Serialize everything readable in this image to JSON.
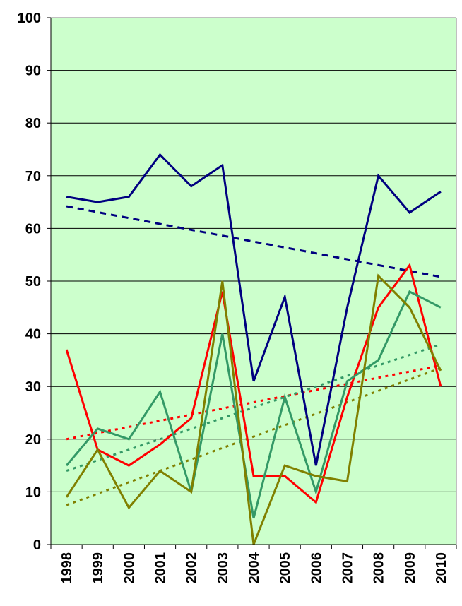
{
  "chart_data": {
    "type": "line",
    "title": "",
    "xlabel": "",
    "ylabel": "",
    "categories": [
      "1998",
      "1999",
      "2000",
      "2001",
      "2002",
      "2003",
      "2004",
      "2005",
      "2006",
      "2007",
      "2008",
      "2009",
      "2010"
    ],
    "ylim": [
      0,
      100
    ],
    "yticks": [
      0,
      10,
      20,
      30,
      40,
      50,
      60,
      70,
      80,
      90,
      100
    ],
    "grid": true,
    "legend": "none",
    "plot_background": "#ccffcc",
    "series": [
      {
        "color": "#000080",
        "style": "solid",
        "values": [
          66,
          65,
          66,
          74,
          68,
          72,
          31,
          47,
          15,
          45,
          70,
          63,
          67
        ]
      },
      {
        "color": "#ff0000",
        "style": "solid",
        "values": [
          37,
          18,
          15,
          19,
          24,
          48,
          13,
          13,
          8,
          28,
          45,
          53,
          30
        ]
      },
      {
        "color": "#339966",
        "style": "solid",
        "values": [
          15,
          22,
          20,
          29,
          10,
          40,
          5,
          28,
          10,
          31,
          35,
          48,
          45
        ]
      },
      {
        "color": "#808000",
        "style": "solid",
        "values": [
          9,
          18,
          7,
          14,
          10,
          50,
          0,
          15,
          13,
          12,
          51,
          45,
          33
        ]
      }
    ],
    "trendlines": [
      {
        "color": "#000080",
        "style": "dashed",
        "start": 64.2,
        "end": 50.8
      },
      {
        "color": "#ff0000",
        "style": "dotted",
        "start": 20.0,
        "end": 34.0
      },
      {
        "color": "#339966",
        "style": "dotted",
        "start": 14.0,
        "end": 38.0
      },
      {
        "color": "#808000",
        "style": "dotted",
        "start": 7.5,
        "end": 33.5
      }
    ]
  }
}
